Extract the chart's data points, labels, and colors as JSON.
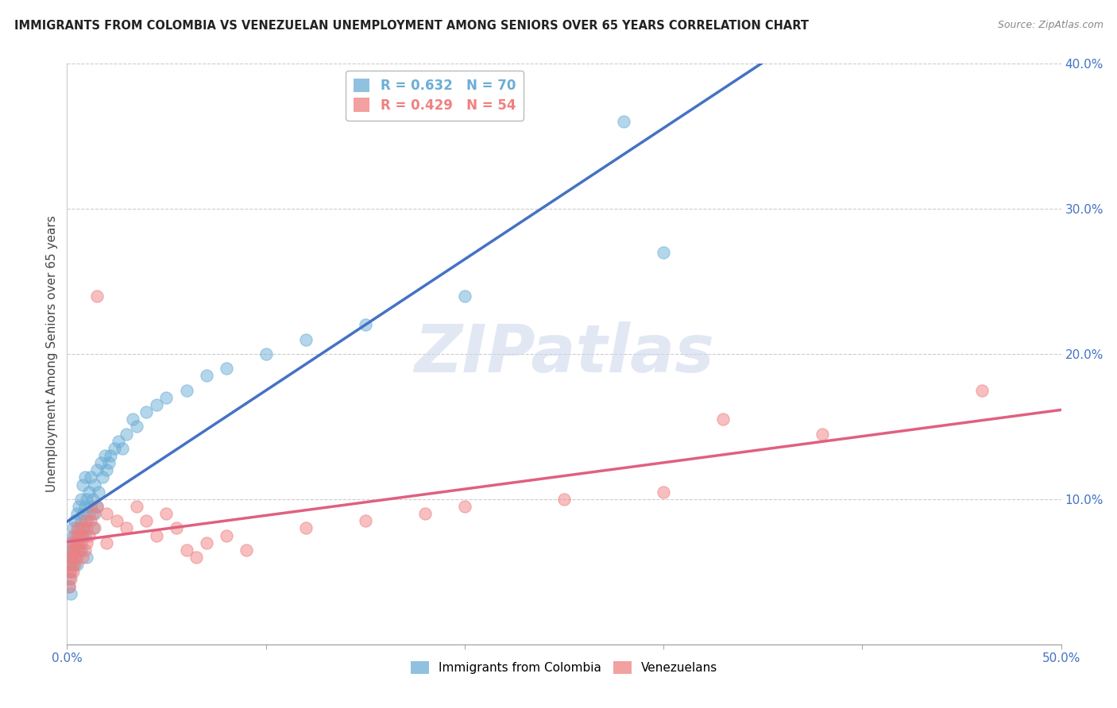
{
  "title": "IMMIGRANTS FROM COLOMBIA VS VENEZUELAN UNEMPLOYMENT AMONG SENIORS OVER 65 YEARS CORRELATION CHART",
  "source": "Source: ZipAtlas.com",
  "ylabel": "Unemployment Among Seniors over 65 years",
  "colombia_R": 0.632,
  "colombia_N": 70,
  "venezuela_R": 0.429,
  "venezuela_N": 54,
  "colombia_color": "#6baed6",
  "venezuela_color": "#f08080",
  "colombia_trend_color": "#4472c4",
  "colombia_dash_color": "#aaaacc",
  "venezuela_trend_color": "#e06080",
  "watermark": "ZIPatlas",
  "colombia_scatter": [
    [
      0.001,
      0.055
    ],
    [
      0.001,
      0.062
    ],
    [
      0.001,
      0.045
    ],
    [
      0.002,
      0.06
    ],
    [
      0.002,
      0.07
    ],
    [
      0.002,
      0.05
    ],
    [
      0.003,
      0.065
    ],
    [
      0.003,
      0.075
    ],
    [
      0.003,
      0.055
    ],
    [
      0.003,
      0.08
    ],
    [
      0.004,
      0.07
    ],
    [
      0.004,
      0.06
    ],
    [
      0.004,
      0.085
    ],
    [
      0.005,
      0.075
    ],
    [
      0.005,
      0.065
    ],
    [
      0.005,
      0.09
    ],
    [
      0.005,
      0.055
    ],
    [
      0.006,
      0.08
    ],
    [
      0.006,
      0.07
    ],
    [
      0.006,
      0.095
    ],
    [
      0.007,
      0.085
    ],
    [
      0.007,
      0.075
    ],
    [
      0.007,
      0.065
    ],
    [
      0.007,
      0.1
    ],
    [
      0.008,
      0.09
    ],
    [
      0.008,
      0.08
    ],
    [
      0.008,
      0.11
    ],
    [
      0.009,
      0.075
    ],
    [
      0.009,
      0.095
    ],
    [
      0.009,
      0.115
    ],
    [
      0.01,
      0.085
    ],
    [
      0.01,
      0.1
    ],
    [
      0.01,
      0.06
    ],
    [
      0.011,
      0.09
    ],
    [
      0.011,
      0.105
    ],
    [
      0.012,
      0.095
    ],
    [
      0.012,
      0.115
    ],
    [
      0.013,
      0.1
    ],
    [
      0.013,
      0.08
    ],
    [
      0.014,
      0.09
    ],
    [
      0.014,
      0.11
    ],
    [
      0.015,
      0.095
    ],
    [
      0.015,
      0.12
    ],
    [
      0.016,
      0.105
    ],
    [
      0.017,
      0.125
    ],
    [
      0.018,
      0.115
    ],
    [
      0.019,
      0.13
    ],
    [
      0.02,
      0.12
    ],
    [
      0.021,
      0.125
    ],
    [
      0.022,
      0.13
    ],
    [
      0.024,
      0.135
    ],
    [
      0.026,
      0.14
    ],
    [
      0.028,
      0.135
    ],
    [
      0.03,
      0.145
    ],
    [
      0.033,
      0.155
    ],
    [
      0.035,
      0.15
    ],
    [
      0.04,
      0.16
    ],
    [
      0.045,
      0.165
    ],
    [
      0.05,
      0.17
    ],
    [
      0.06,
      0.175
    ],
    [
      0.07,
      0.185
    ],
    [
      0.08,
      0.19
    ],
    [
      0.1,
      0.2
    ],
    [
      0.12,
      0.21
    ],
    [
      0.15,
      0.22
    ],
    [
      0.2,
      0.24
    ],
    [
      0.28,
      0.36
    ],
    [
      0.3,
      0.27
    ],
    [
      0.001,
      0.04
    ],
    [
      0.002,
      0.035
    ]
  ],
  "venezuela_scatter": [
    [
      0.001,
      0.05
    ],
    [
      0.001,
      0.06
    ],
    [
      0.001,
      0.04
    ],
    [
      0.002,
      0.055
    ],
    [
      0.002,
      0.065
    ],
    [
      0.002,
      0.045
    ],
    [
      0.003,
      0.06
    ],
    [
      0.003,
      0.07
    ],
    [
      0.003,
      0.05
    ],
    [
      0.004,
      0.065
    ],
    [
      0.004,
      0.055
    ],
    [
      0.004,
      0.075
    ],
    [
      0.005,
      0.07
    ],
    [
      0.005,
      0.06
    ],
    [
      0.005,
      0.08
    ],
    [
      0.006,
      0.065
    ],
    [
      0.006,
      0.075
    ],
    [
      0.007,
      0.07
    ],
    [
      0.007,
      0.08
    ],
    [
      0.008,
      0.075
    ],
    [
      0.008,
      0.06
    ],
    [
      0.009,
      0.065
    ],
    [
      0.009,
      0.085
    ],
    [
      0.01,
      0.07
    ],
    [
      0.01,
      0.08
    ],
    [
      0.011,
      0.075
    ],
    [
      0.012,
      0.085
    ],
    [
      0.013,
      0.09
    ],
    [
      0.014,
      0.08
    ],
    [
      0.015,
      0.095
    ],
    [
      0.015,
      0.24
    ],
    [
      0.02,
      0.07
    ],
    [
      0.02,
      0.09
    ],
    [
      0.025,
      0.085
    ],
    [
      0.03,
      0.08
    ],
    [
      0.035,
      0.095
    ],
    [
      0.04,
      0.085
    ],
    [
      0.045,
      0.075
    ],
    [
      0.05,
      0.09
    ],
    [
      0.055,
      0.08
    ],
    [
      0.06,
      0.065
    ],
    [
      0.065,
      0.06
    ],
    [
      0.07,
      0.07
    ],
    [
      0.08,
      0.075
    ],
    [
      0.09,
      0.065
    ],
    [
      0.12,
      0.08
    ],
    [
      0.15,
      0.085
    ],
    [
      0.18,
      0.09
    ],
    [
      0.2,
      0.095
    ],
    [
      0.25,
      0.1
    ],
    [
      0.3,
      0.105
    ],
    [
      0.33,
      0.155
    ],
    [
      0.38,
      0.145
    ],
    [
      0.46,
      0.175
    ]
  ],
  "xlim": [
    0,
    0.5
  ],
  "ylim": [
    0,
    0.4
  ],
  "xtick_vals": [
    0,
    0.5
  ],
  "xtick_labels": [
    "0.0%",
    "50.0%"
  ],
  "ytick_vals": [
    0.0,
    0.1,
    0.2,
    0.3,
    0.4
  ],
  "ytick_labels": [
    "",
    "10.0%",
    "20.0%",
    "30.0%",
    "40.0%"
  ],
  "background_color": "#ffffff",
  "grid_color": "#cccccc"
}
